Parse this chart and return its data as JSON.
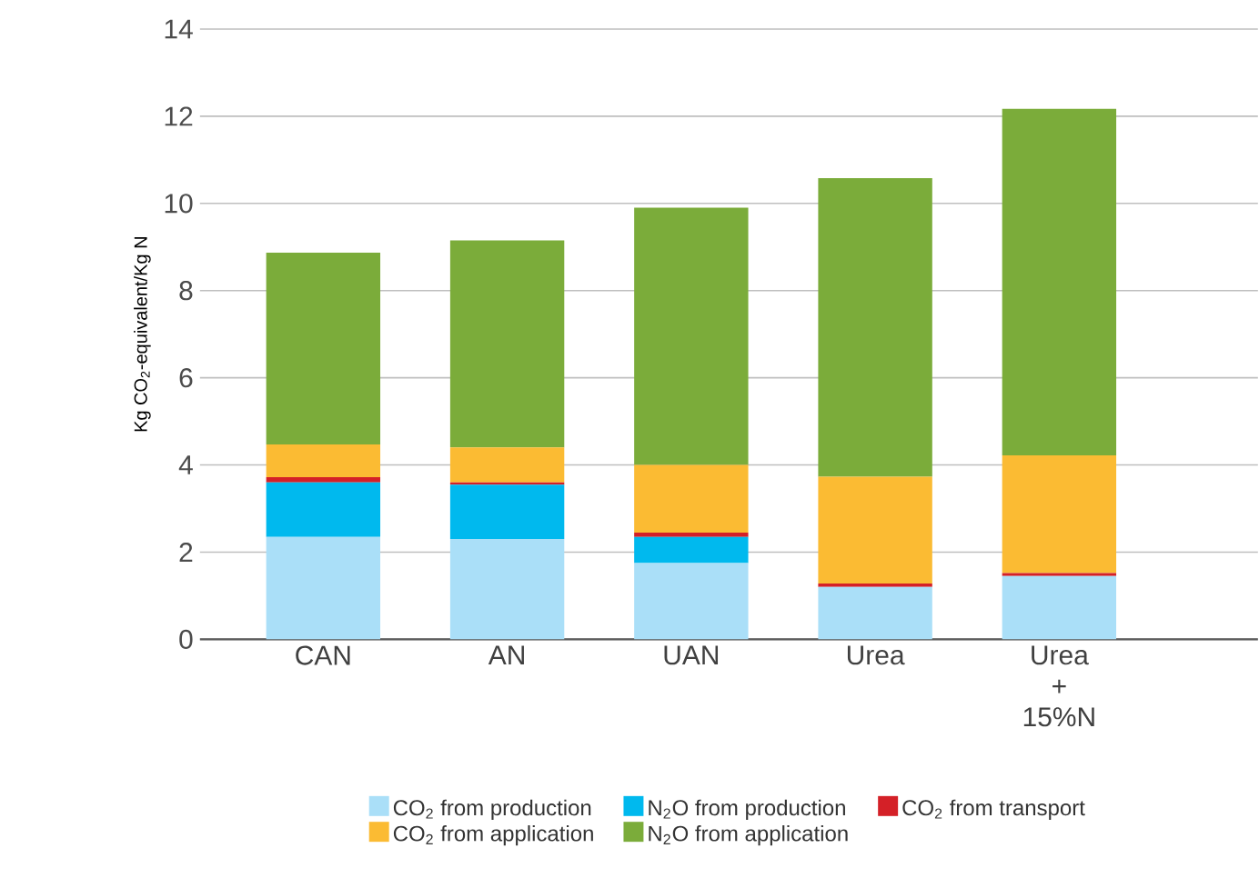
{
  "chart_data": {
    "type": "bar",
    "stacked": true,
    "ylabel": "Kg CO$_{2}$-equivalent/Kg N",
    "categories": [
      "CAN",
      "AN",
      "UAN",
      "Urea",
      "Urea + 15%N"
    ],
    "series": [
      {
        "name": "CO$_{2}$ from production",
        "color": "#aadff8",
        "values": [
          2.35,
          2.3,
          1.75,
          1.2,
          1.45
        ]
      },
      {
        "name": "N$_{2}$O from production",
        "color": "#00b9ee",
        "values": [
          1.25,
          1.25,
          0.6,
          0,
          0
        ]
      },
      {
        "name": "CO$_{2}$ from transport",
        "color": "#d42027",
        "values": [
          0.12,
          0.05,
          0.1,
          0.08,
          0.07
        ]
      },
      {
        "name": "CO$_{2}$ from application",
        "color": "#fbbb33",
        "values": [
          0.75,
          0.8,
          1.55,
          2.45,
          2.7
        ]
      },
      {
        "name": "N$_{2}$O from application",
        "color": "#7bac3a",
        "values": [
          4.4,
          4.75,
          5.9,
          6.85,
          7.95
        ]
      }
    ],
    "ylim": [
      0,
      14
    ],
    "yticks": [
      0,
      2,
      4,
      6,
      8,
      10,
      12,
      14
    ],
    "grid": "y",
    "legend": "bottom"
  }
}
